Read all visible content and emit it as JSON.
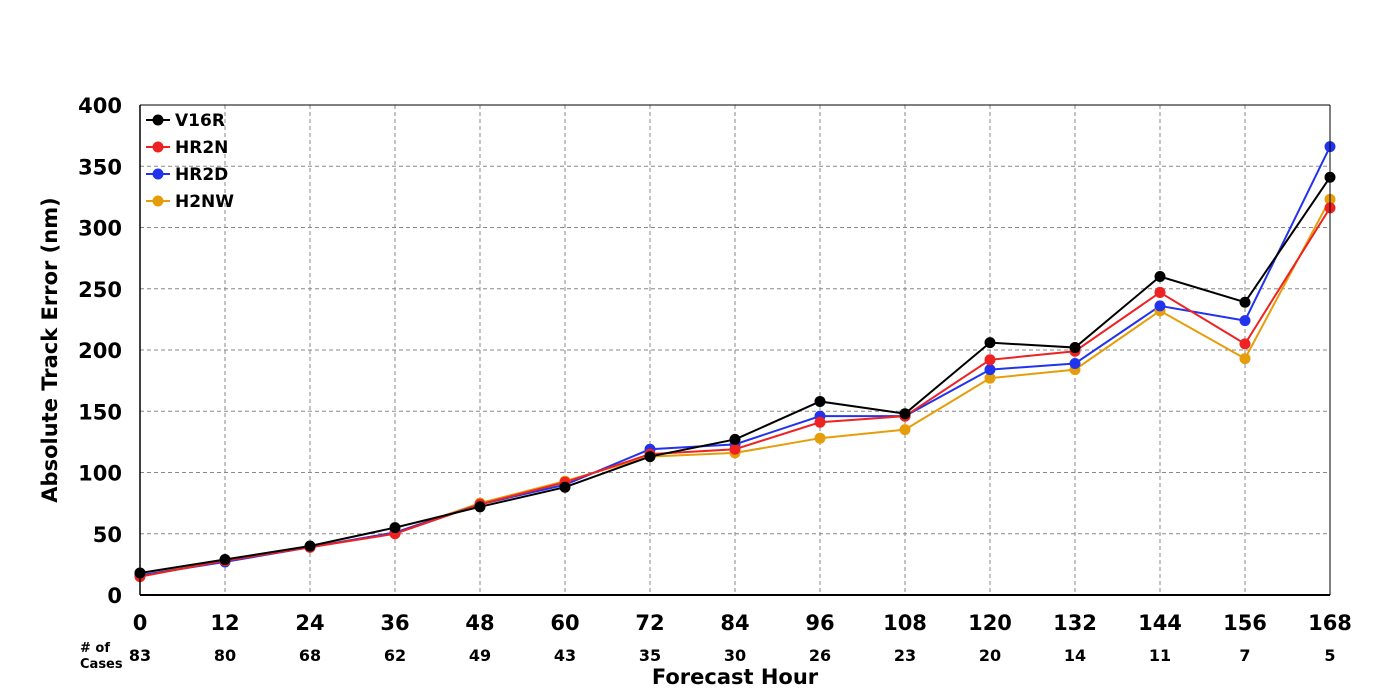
{
  "chart_data": {
    "type": "line",
    "xlabel": "Forecast Hour",
    "ylabel": "Absolute Track Error (nm)",
    "x": [
      0,
      12,
      24,
      36,
      48,
      60,
      72,
      84,
      96,
      108,
      120,
      132,
      144,
      156,
      168
    ],
    "xlim": [
      0,
      168
    ],
    "ylim": [
      0,
      400
    ],
    "yticks": [
      0,
      50,
      100,
      150,
      200,
      250,
      300,
      350,
      400
    ],
    "grid": true,
    "legend_position": "top-left",
    "cases_label": "# of Cases",
    "cases_label_lines": [
      "# of",
      "Cases"
    ],
    "cases": [
      83,
      80,
      68,
      62,
      49,
      43,
      35,
      30,
      26,
      23,
      20,
      14,
      11,
      7,
      5
    ],
    "series": [
      {
        "name": "V16R",
        "color": "#000000",
        "values": [
          18,
          29,
          40,
          55,
          72,
          88,
          113,
          127,
          158,
          148,
          206,
          202,
          260,
          239,
          341
        ]
      },
      {
        "name": "HR2N",
        "color": "#ee2222",
        "values": [
          15,
          28,
          39,
          50,
          74,
          92,
          115,
          119,
          141,
          146,
          192,
          199,
          247,
          205,
          316
        ]
      },
      {
        "name": "HR2D",
        "color": "#2233ee",
        "values": [
          16,
          27,
          39,
          51,
          74,
          90,
          119,
          123,
          146,
          146,
          184,
          189,
          236,
          224,
          366
        ]
      },
      {
        "name": "H2NW",
        "color": "#e59e0a",
        "values": [
          16,
          28,
          39,
          51,
          75,
          93,
          113,
          116,
          128,
          135,
          177,
          184,
          232,
          193,
          323
        ]
      }
    ]
  }
}
